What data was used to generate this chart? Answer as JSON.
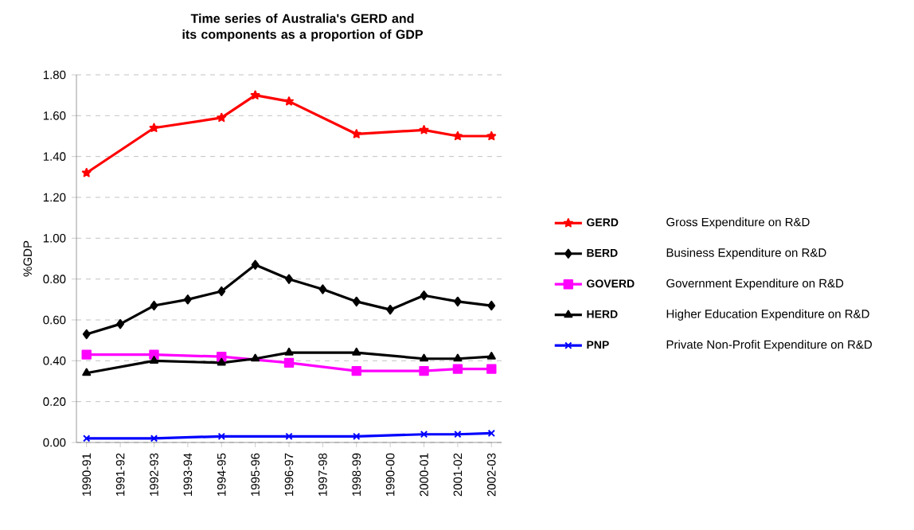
{
  "chart_data": {
    "type": "line",
    "title": "Time series of Australia's GERD and its components as a proportion of GDP",
    "ylabel": "%GDP",
    "categories": [
      "1990-91",
      "1991-92",
      "1992-93",
      "1993-94",
      "1994-95",
      "1995-96",
      "1996-97",
      "1997-98",
      "1998-99",
      "1990-00",
      "2000-01",
      "2001-02",
      "2002-03"
    ],
    "series": [
      {
        "name": "GERD",
        "color": "#ff0000",
        "marker": "star",
        "values": [
          1.32,
          null,
          1.54,
          null,
          1.59,
          1.7,
          1.67,
          null,
          1.51,
          null,
          1.53,
          1.5,
          1.5
        ]
      },
      {
        "name": "BERD",
        "color": "#000000",
        "marker": "diamond",
        "values": [
          0.53,
          0.58,
          0.67,
          0.7,
          0.74,
          0.87,
          0.8,
          0.75,
          0.69,
          0.65,
          0.72,
          0.69,
          0.67
        ]
      },
      {
        "name": "GOVERD",
        "color": "#ff00ff",
        "marker": "square",
        "values": [
          0.43,
          null,
          0.43,
          null,
          0.42,
          null,
          0.39,
          null,
          0.35,
          null,
          0.35,
          0.36,
          0.36
        ]
      },
      {
        "name": "HERD",
        "color": "#000000",
        "marker": "triangle",
        "values": [
          0.34,
          null,
          0.4,
          null,
          0.39,
          0.41,
          0.44,
          null,
          0.44,
          null,
          0.41,
          0.41,
          0.42
        ]
      },
      {
        "name": "PNP",
        "color": "#0000ff",
        "marker": "cross",
        "values": [
          0.02,
          null,
          0.02,
          null,
          0.03,
          null,
          0.03,
          null,
          0.03,
          null,
          0.04,
          0.04,
          0.045
        ]
      }
    ],
    "annotations": [
      "Gross Expenditure on R&D",
      "Business Expenditure on R&D",
      "Government Expenditure on R&D",
      "Higher Education Expenditure on R&D",
      "Private Non-Profit Expenditure on R&D"
    ],
    "ylim": [
      0,
      1.8
    ],
    "yticks": [
      {
        "value": 0,
        "label": "0.00"
      },
      {
        "value": 0.2,
        "label": "0.20"
      },
      {
        "value": 0.4,
        "label": "0.40"
      },
      {
        "value": 0.6,
        "label": "0.60"
      },
      {
        "value": 0.8,
        "label": "0.80"
      },
      {
        "value": 1.0,
        "label": "1.00"
      },
      {
        "value": 1.2,
        "label": "1.20"
      },
      {
        "value": 1.4,
        "label": "1.40"
      },
      {
        "value": 1.6,
        "label": "1.60"
      },
      {
        "value": 1.8,
        "label": "1.80"
      }
    ],
    "grid": "y",
    "legend": "right",
    "line_style": "solid"
  }
}
